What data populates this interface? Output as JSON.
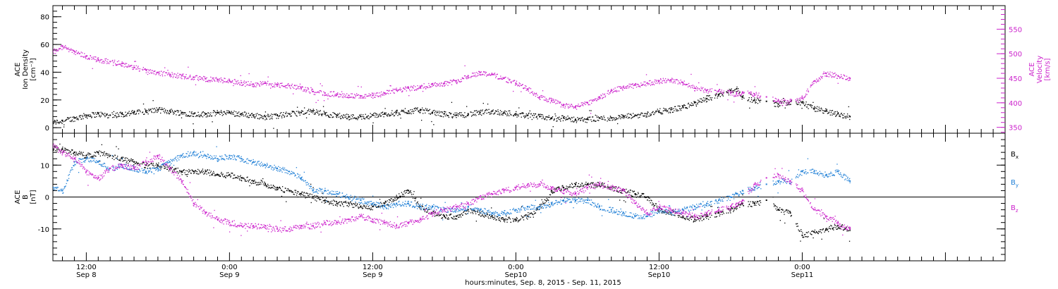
{
  "figure": {
    "xlabel": "hours:minutes, Sep.  8, 2015 - Sep. 11, 2015"
  },
  "colors": {
    "black": "#000000",
    "magenta": "#cc22cc",
    "blue": "#1f7fd6"
  },
  "chart_data": [
    {
      "type": "scatter",
      "panel": "top",
      "x_unit": "hours since Sep 8 00:00",
      "xlim": [
        9.2,
        89
      ],
      "x_ticks": [
        {
          "x": 12,
          "time": "12:00",
          "date": "Sep 8"
        },
        {
          "x": 24,
          "time": "0:00",
          "date": "Sep 9"
        },
        {
          "x": 36,
          "time": "12:00",
          "date": "Sep 9"
        },
        {
          "x": 48,
          "time": "0:00",
          "date": "Sep10"
        },
        {
          "x": 60,
          "time": "12:00",
          "date": "Sep10"
        },
        {
          "x": 72,
          "time": "0:00",
          "date": "Sep11"
        }
      ],
      "y_left": {
        "label": [
          "ACE",
          "Ion Density",
          "[cm⁻³]"
        ],
        "ylim": [
          -4,
          88
        ],
        "ticks": [
          0,
          20,
          40,
          60,
          80
        ]
      },
      "y_right": {
        "label": [
          "ACE",
          "Velocity",
          "[km/s]"
        ],
        "ylim": [
          338,
          598
        ],
        "ticks": [
          350,
          400,
          450,
          500,
          550
        ]
      },
      "series": [
        {
          "key": "density",
          "axis": "left",
          "color": "black",
          "x": [
            9.2,
            10,
            11,
            12,
            13,
            14,
            15,
            16,
            17,
            18,
            19,
            20,
            21,
            22,
            23,
            24,
            25,
            26,
            27,
            28,
            29,
            30,
            31,
            32,
            33,
            34,
            35,
            36,
            37,
            38,
            39,
            40,
            41,
            42,
            43,
            44,
            45,
            46,
            47,
            48,
            49,
            50,
            51,
            52,
            53,
            54,
            55,
            56,
            57,
            58,
            59,
            60,
            61,
            62,
            63,
            64,
            65,
            66,
            66.5,
            67,
            68,
            69,
            70,
            71,
            72,
            73,
            74,
            75,
            76
          ],
          "y": [
            4,
            5,
            7,
            9,
            10,
            9,
            10,
            11,
            12,
            13,
            12,
            11,
            10,
            10,
            11,
            11,
            10,
            9,
            8,
            9,
            10,
            11,
            12,
            10,
            9,
            8,
            8,
            9,
            10,
            11,
            12,
            13,
            11,
            10,
            9,
            10,
            11,
            12,
            11,
            10,
            9,
            8,
            7,
            7,
            6,
            6,
            7,
            7,
            8,
            9,
            10,
            12,
            13,
            15,
            18,
            21,
            24,
            27,
            28,
            22,
            20,
            19,
            17,
            19,
            18,
            14,
            12,
            10,
            8
          ]
        },
        {
          "key": "velocity",
          "axis": "right",
          "color": "magenta",
          "x": [
            9.2,
            10,
            11,
            12,
            13,
            14,
            15,
            16,
            17,
            18,
            19,
            20,
            21,
            22,
            23,
            24,
            25,
            26,
            27,
            28,
            29,
            30,
            31,
            32,
            33,
            34,
            35,
            36,
            37,
            38,
            39,
            40,
            41,
            42,
            43,
            44,
            45,
            46,
            47,
            48,
            49,
            50,
            51,
            52,
            53,
            54,
            55,
            56,
            57,
            58,
            59,
            60,
            61,
            62,
            63,
            64,
            65,
            66,
            66.5,
            67,
            68,
            69,
            70,
            71,
            72,
            73,
            74,
            75,
            76
          ],
          "y": [
            505,
            515,
            505,
            495,
            488,
            484,
            480,
            472,
            467,
            462,
            458,
            455,
            452,
            449,
            447,
            445,
            441,
            438,
            440,
            437,
            435,
            430,
            423,
            420,
            418,
            415,
            414,
            415,
            420,
            426,
            430,
            432,
            438,
            440,
            445,
            455,
            462,
            458,
            450,
            440,
            428,
            412,
            405,
            395,
            392,
            400,
            412,
            425,
            432,
            436,
            440,
            445,
            447,
            441,
            430,
            425,
            424,
            420,
            418,
            422,
            418,
            412,
            405,
            403,
            410,
            444,
            460,
            455,
            450
          ]
        }
      ]
    },
    {
      "type": "scatter",
      "panel": "bottom",
      "x_unit": "hours since Sep 8 00:00",
      "xlim": [
        9.2,
        89
      ],
      "x_ticks": [
        {
          "x": 12,
          "time": "12:00",
          "date": "Sep 8"
        },
        {
          "x": 24,
          "time": "0:00",
          "date": "Sep 9"
        },
        {
          "x": 36,
          "time": "12:00",
          "date": "Sep 9"
        },
        {
          "x": 48,
          "time": "0:00",
          "date": "Sep10"
        },
        {
          "x": 60,
          "time": "12:00",
          "date": "Sep10"
        },
        {
          "x": 72,
          "time": "0:00",
          "date": "Sep11"
        }
      ],
      "y_left": {
        "label": [
          "ACE",
          "B",
          "[nT]"
        ],
        "ylim": [
          -20,
          20
        ],
        "ticks": [
          -10,
          0,
          10
        ]
      },
      "zero_line": true,
      "series": [
        {
          "key": "bx",
          "name": "Bx",
          "color": "black",
          "x": [
            9.2,
            10,
            11,
            12,
            13,
            14,
            15,
            16,
            17,
            18,
            19,
            20,
            21,
            22,
            23,
            24,
            25,
            26,
            27,
            28,
            29,
            30,
            31,
            32,
            33,
            34,
            35,
            36,
            37,
            38,
            39,
            40,
            41,
            42,
            43,
            44,
            45,
            46,
            47,
            48,
            49,
            50,
            51,
            52,
            53,
            54,
            55,
            56,
            57,
            58,
            59,
            60,
            61,
            62,
            63,
            64,
            65,
            66,
            66.5,
            67,
            68,
            69,
            70,
            71,
            72,
            73,
            74,
            75,
            76
          ],
          "y": [
            15,
            15,
            14,
            13,
            14,
            13,
            12,
            11,
            10,
            10,
            9,
            8,
            8,
            8,
            7,
            7,
            6,
            5,
            4,
            3,
            2,
            1,
            0,
            -1,
            -2,
            -2,
            -3,
            -3,
            -2,
            0,
            2,
            -3,
            -5,
            -6,
            -6,
            -4,
            -5,
            -6,
            -7,
            -7,
            -6,
            -3,
            2,
            3,
            4,
            4,
            4,
            3,
            2,
            1,
            0,
            -4,
            -5,
            -6,
            -7,
            -6,
            -5,
            -4,
            -3,
            -2,
            -2,
            -1,
            -4,
            -5,
            -12,
            -11,
            -10,
            -9,
            -10
          ]
        },
        {
          "key": "by",
          "name": "By",
          "color": "blue",
          "x": [
            9.2,
            10,
            11,
            12,
            13,
            14,
            15,
            16,
            17,
            18,
            19,
            20,
            21,
            22,
            23,
            24,
            25,
            26,
            27,
            28,
            29,
            30,
            31,
            32,
            33,
            34,
            35,
            36,
            37,
            38,
            39,
            40,
            41,
            42,
            43,
            44,
            45,
            46,
            47,
            48,
            49,
            50,
            51,
            52,
            53,
            54,
            55,
            56,
            57,
            58,
            59,
            60,
            61,
            62,
            63,
            64,
            65,
            66,
            66.5,
            67,
            68,
            69,
            70,
            71,
            72,
            73,
            74,
            75,
            76
          ],
          "y": [
            3,
            2,
            11,
            12,
            11,
            9,
            10,
            9,
            8,
            9,
            11,
            13,
            14,
            13,
            12,
            13,
            12,
            11,
            10,
            9,
            8,
            6,
            2,
            2,
            1,
            0,
            -1,
            -2,
            -3,
            -2,
            -2,
            -3,
            -3,
            -4,
            -4,
            -3,
            -4,
            -5,
            -5,
            -4,
            -3,
            -3,
            -2,
            -1,
            -1,
            -1,
            -3,
            -4,
            -5,
            -6,
            -6,
            -4,
            -5,
            -4,
            -3,
            -2,
            -1,
            0,
            1,
            2,
            3,
            4,
            5,
            5,
            8,
            8,
            7,
            8,
            5
          ]
        },
        {
          "key": "bz",
          "name": "Bz",
          "color": "magenta",
          "x": [
            9.2,
            10,
            11,
            12,
            13,
            14,
            15,
            16,
            17,
            18,
            19,
            20,
            21,
            22,
            23,
            24,
            25,
            26,
            27,
            28,
            29,
            30,
            31,
            32,
            33,
            34,
            35,
            36,
            37,
            38,
            39,
            40,
            41,
            42,
            43,
            44,
            45,
            46,
            47,
            48,
            49,
            50,
            51,
            52,
            53,
            54,
            55,
            56,
            57,
            58,
            59,
            60,
            61,
            62,
            63,
            64,
            65,
            66,
            66.5,
            67,
            68,
            69,
            70,
            71,
            72,
            73,
            74,
            75,
            76
          ],
          "y": [
            16,
            14,
            12,
            8,
            6,
            9,
            10,
            9,
            11,
            13,
            9,
            5,
            -2,
            -5,
            -7,
            -8,
            -9,
            -9,
            -9,
            -10,
            -10,
            -9,
            -9,
            -8,
            -8,
            -7,
            -6,
            -7,
            -8,
            -9,
            -8,
            -7,
            -5,
            -4,
            -3,
            -2,
            0,
            1,
            2,
            3,
            4,
            4,
            3,
            2,
            1,
            3,
            4,
            3,
            2,
            -2,
            -5,
            -3,
            -4,
            -5,
            -6,
            -5,
            -4,
            -3,
            -2,
            -1,
            4,
            6,
            7,
            5,
            2,
            -4,
            -6,
            -8,
            -10
          ]
        }
      ],
      "legend": [
        {
          "base": "B",
          "sub": "x",
          "color": "black"
        },
        {
          "base": "B",
          "sub": "y",
          "color": "blue"
        },
        {
          "base": "B",
          "sub": "z",
          "color": "magenta"
        }
      ]
    }
  ]
}
